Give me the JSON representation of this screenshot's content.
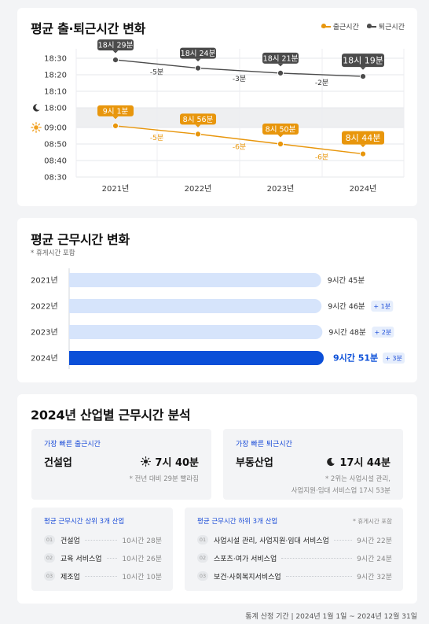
{
  "section1": {
    "title": "평균 출·퇴근시간 변화",
    "legend": [
      {
        "label": "출근시간",
        "color": "#e8960c"
      },
      {
        "label": "퇴근시간",
        "color": "#4b4b4b"
      }
    ]
  },
  "chart_data": [
    {
      "type": "line",
      "title": "평균 출·퇴근시간 변화",
      "x": [
        "2021년",
        "2022년",
        "2023년",
        "2024년"
      ],
      "upper_yticks": [
        "18:30",
        "18:20",
        "18:10",
        "18:00"
      ],
      "lower_yticks": [
        "09:00",
        "08:50",
        "08:40",
        "08:30"
      ],
      "series": [
        {
          "name": "퇴근시간",
          "color": "#4b4b4b",
          "values": [
            "18:29",
            "18:24",
            "18:21",
            "18:19"
          ],
          "labels": [
            "18시 29분",
            "18시 24분",
            "18시 21분",
            "18시 19분"
          ],
          "changes": [
            "-5분",
            "-3분",
            "-2분"
          ]
        },
        {
          "name": "출근시간",
          "color": "#e8960c",
          "values": [
            "09:01",
            "08:56",
            "08:50",
            "08:44"
          ],
          "labels": [
            "9시 1분",
            "8시 56분",
            "8시 50분",
            "8시 44분"
          ],
          "changes": [
            "-5분",
            "-6분",
            "-6분"
          ]
        }
      ],
      "icons": [
        "moon-icon",
        "sun-icon"
      ],
      "grid": true
    },
    {
      "type": "bar",
      "orientation": "horizontal",
      "title": "평균 근무시간 변화",
      "categories": [
        "2021년",
        "2022년",
        "2023년",
        "2024년"
      ],
      "values_minutes": [
        585,
        586,
        588,
        591
      ],
      "labels": [
        "9시간 45분",
        "9시간 46분",
        "9시간 48분",
        "9시간 51분"
      ],
      "changes": [
        "",
        "+ 1분",
        "+ 2분",
        "+ 3분"
      ],
      "colors": {
        "normal": "#d6e4fb",
        "highlight": "#0b4fd8",
        "badge_bg": "#e6eefc",
        "badge_text": "#1d4ed8"
      }
    }
  ],
  "section2": {
    "title": "평균 근무시간 변화",
    "note": "* 휴게시간 포함"
  },
  "section3": {
    "title": "2024년 산업별 근무시간 분석",
    "fastest_in": {
      "label": "가장 빠른 출근시간",
      "industry": "건설업",
      "time": "7시 40분",
      "icon": "sun-icon",
      "sub": "* 전년 대비 29분 빨라짐"
    },
    "fastest_out": {
      "label": "가장 빠른 퇴근시간",
      "industry": "부동산업",
      "time": "17시 44분",
      "icon": "moon-icon",
      "sub1": "* 2위는 사업시설 관리,",
      "sub2": "사업지원·임대 서비스업 17시 53분"
    },
    "top3": {
      "title": "평균 근무시간 상위 3개 산업",
      "items": [
        {
          "rank": "01",
          "name": "건설업",
          "value": "10시간 28분"
        },
        {
          "rank": "02",
          "name": "교육 서비스업",
          "value": "10시간 26분"
        },
        {
          "rank": "03",
          "name": "제조업",
          "value": "10시간 10분"
        }
      ]
    },
    "bottom3": {
      "title": "평균 근무시간 하위 3개 산업",
      "note": "* 휴게시간 포함",
      "items": [
        {
          "rank": "01",
          "name": "사업시설 관리, 사업지원·임대 서비스업",
          "value": "9시간 22분"
        },
        {
          "rank": "02",
          "name": "스포츠·여가 서비스업",
          "value": "9시간 24분"
        },
        {
          "rank": "03",
          "name": "보건·사회복지서비스업",
          "value": "9시간 32분"
        }
      ]
    }
  },
  "footer": "통계 산정 기간 | 2024년 1월 1일 ~ 2024년 12월 31일"
}
